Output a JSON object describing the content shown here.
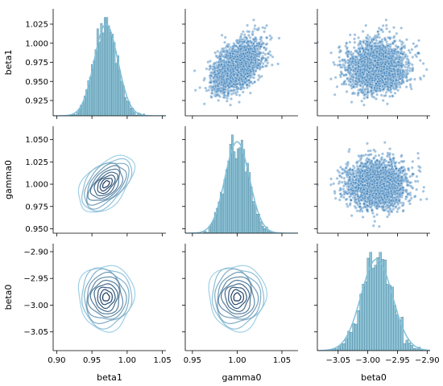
{
  "chart_data": {
    "type": "pairplot",
    "variables": [
      "beta1",
      "gamma0",
      "beta0"
    ],
    "colors": {
      "hist_fill": "#7ab8cf",
      "hist_edge": "#4a7f97",
      "kde_line": "#7fc0dc",
      "scatter": "#2f78b5",
      "contour_light": "#9fd0e6",
      "contour_dark": "#17375e"
    },
    "axes": {
      "beta1": {
        "lim": [
          0.895,
          1.055
        ],
        "ticks": [
          0.9,
          0.95,
          1.0,
          1.05
        ],
        "tick_labels": [
          "0.90",
          "0.95",
          "1.00",
          "1.05"
        ],
        "ylim": [
          0.905,
          1.045
        ],
        "yticks": [
          0.925,
          0.95,
          0.975,
          1.0,
          1.025
        ],
        "ytick_labels": [
          "0.925",
          "0.950",
          "0.975",
          "1.000",
          "1.025"
        ]
      },
      "gamma0": {
        "lim": [
          0.942,
          1.068
        ],
        "ticks": [
          0.95,
          1.0,
          1.05
        ],
        "tick_labels": [
          "0.95",
          "1.00",
          "1.05"
        ],
        "ylim": [
          0.945,
          1.065
        ],
        "yticks": [
          0.95,
          0.975,
          1.0,
          1.025,
          1.05
        ],
        "ytick_labels": [
          "0.950",
          "0.975",
          "1.000",
          "1.025",
          "1.050"
        ]
      },
      "beta0": {
        "lim": [
          -3.085,
          -2.895
        ],
        "ticks": [
          -3.05,
          -3.0,
          -2.95,
          -2.9
        ],
        "tick_labels": [
          "−3.05",
          "−3.00",
          "−2.95",
          "−2.90"
        ],
        "ylim": [
          -3.085,
          -2.885
        ],
        "yticks": [
          -3.05,
          -3.0,
          -2.95,
          -2.9
        ],
        "ytick_labels": [
          "−3.05",
          "−3.00",
          "−2.95",
          "−2.90"
        ]
      }
    },
    "marginals": {
      "beta1": {
        "mean": 0.97,
        "sd": 0.016
      },
      "gamma0": {
        "mean": 1.0,
        "sd": 0.013
      },
      "beta0": {
        "mean": -2.985,
        "sd": 0.025
      }
    },
    "correlations": {
      "beta1_gamma0": 0.5,
      "beta1_beta0": 0.0,
      "gamma0_beta0": 0.0
    },
    "scatter_points_per_panel": 2500,
    "kde_levels": 10
  }
}
